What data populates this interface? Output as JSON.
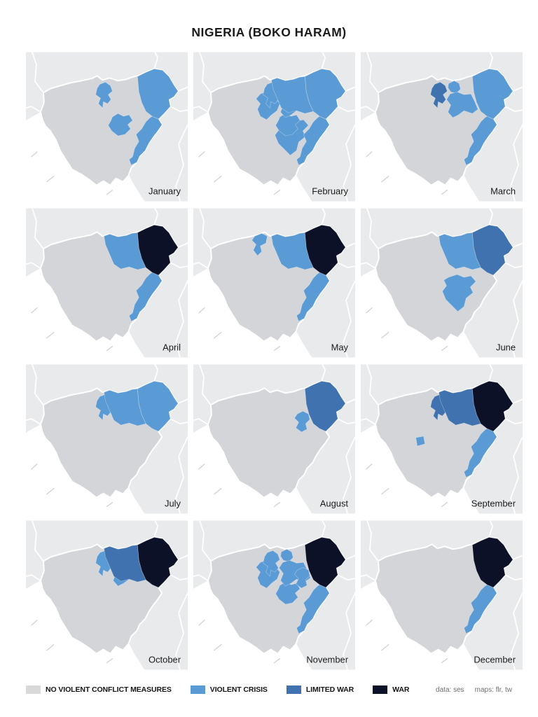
{
  "title": "NIGERIA (BOKO HARAM)",
  "legend": {
    "items": [
      {
        "label": "NO VIOLENT CONFLICT MEASURES",
        "level": "none",
        "color": "#d9d9d9"
      },
      {
        "label": "VIOLENT CRISIS",
        "level": "violent_crisis",
        "color": "#5b9bd5"
      },
      {
        "label": "LIMITED WAR",
        "level": "limited_war",
        "color": "#3f72ae"
      },
      {
        "label": "WAR",
        "level": "war",
        "color": "#0d1128"
      }
    ]
  },
  "credits": {
    "data": "data: ses",
    "maps": "maps: flr, tw"
  },
  "map_colors": {
    "background": "#ffffff",
    "land": "#e9eaeb",
    "country": "#d3d5d8",
    "border": "#ffffff",
    "coast_marks": "#d6d6d6",
    "label": "#1b1b1b"
  },
  "months": [
    {
      "label": "January",
      "regions": {
        "kano": "violent_crisis",
        "plateau": "violent_crisis",
        "borno": "violent_crisis",
        "adamawa": "violent_crisis"
      }
    },
    {
      "label": "February",
      "regions": {
        "kaduna": "violent_crisis",
        "kano": "violent_crisis",
        "jigawa": "violent_crisis",
        "bauchi": "violent_crisis",
        "bauchi_plateau": "violent_crisis",
        "plateau": "violent_crisis",
        "yobe": "violent_crisis",
        "borno": "violent_crisis",
        "adamawa": "violent_crisis"
      }
    },
    {
      "label": "March",
      "regions": {
        "kano": "limited_war",
        "jigawa": "violent_crisis",
        "bauchi": "violent_crisis",
        "borno": "violent_crisis",
        "adamawa": "violent_crisis"
      }
    },
    {
      "label": "April",
      "regions": {
        "yobe": "violent_crisis",
        "borno": "war",
        "adamawa": "violent_crisis"
      }
    },
    {
      "label": "May",
      "regions": {
        "katsina": "violent_crisis",
        "yobe": "violent_crisis",
        "borno": "war",
        "adamawa": "violent_crisis"
      }
    },
    {
      "label": "June",
      "regions": {
        "yobe": "violent_crisis",
        "borno": "limited_war",
        "bauchi_plateau": "violent_crisis"
      }
    },
    {
      "label": "July",
      "regions": {
        "kano": "violent_crisis",
        "yobe": "violent_crisis",
        "borno": "violent_crisis"
      }
    },
    {
      "label": "August",
      "regions": {
        "gombe": "violent_crisis",
        "borno": "limited_war"
      }
    },
    {
      "label": "September",
      "regions": {
        "kano": "limited_war",
        "fct": "violent_crisis",
        "yobe": "limited_war",
        "borno": "war",
        "adamawa": "violent_crisis"
      }
    },
    {
      "label": "October",
      "regions": {
        "kano": "violent_crisis",
        "bauchi": "violent_crisis",
        "yobe": "limited_war",
        "borno": "war"
      }
    },
    {
      "label": "November",
      "regions": {
        "kaduna": "violent_crisis",
        "kano": "violent_crisis",
        "jigawa": "violent_crisis",
        "bauchi": "violent_crisis",
        "plateau": "violent_crisis",
        "gombe": "violent_crisis",
        "adamawa": "violent_crisis",
        "borno": "war"
      }
    },
    {
      "label": "December",
      "regions": {
        "borno": "war",
        "adamawa": "violent_crisis"
      }
    }
  ]
}
